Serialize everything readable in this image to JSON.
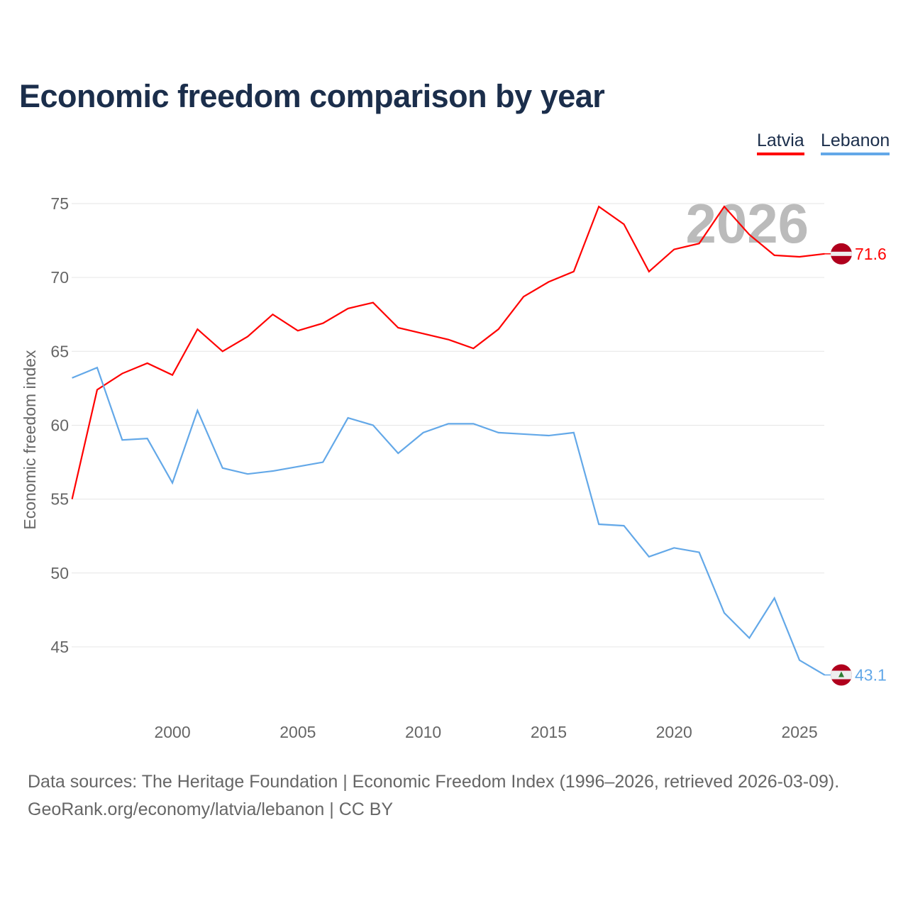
{
  "chart_data": {
    "type": "line",
    "title": "Economic freedom comparison by year",
    "xlabel": "",
    "ylabel": "Economic freedom index",
    "xlim": [
      1996,
      2026
    ],
    "ylim": [
      41,
      77
    ],
    "yticks": [
      45,
      50,
      55,
      60,
      65,
      70,
      75
    ],
    "xticks": [
      2000,
      2005,
      2010,
      2015,
      2020,
      2025
    ],
    "grid": "horizontal",
    "legend_position": "top-right",
    "watermark_year": "2026",
    "x": [
      1996,
      1997,
      1998,
      1999,
      2000,
      2001,
      2002,
      2003,
      2004,
      2005,
      2006,
      2007,
      2008,
      2009,
      2010,
      2011,
      2012,
      2013,
      2014,
      2015,
      2016,
      2017,
      2018,
      2019,
      2020,
      2021,
      2022,
      2023,
      2024,
      2025,
      2026
    ],
    "series": [
      {
        "name": "Latvia",
        "color": "#ff0000",
        "end_label": "71.6",
        "values": [
          55.0,
          62.4,
          63.5,
          64.2,
          63.4,
          66.5,
          65.0,
          66.0,
          67.5,
          66.4,
          66.9,
          67.9,
          68.3,
          66.6,
          66.2,
          65.8,
          65.2,
          66.5,
          68.7,
          69.7,
          70.4,
          74.8,
          73.6,
          70.4,
          71.9,
          72.3,
          74.8,
          72.9,
          71.5,
          71.4,
          71.6
        ]
      },
      {
        "name": "Lebanon",
        "color": "#63a8e8",
        "end_label": "43.1",
        "values": [
          63.2,
          63.9,
          59.0,
          59.1,
          56.1,
          61.0,
          57.1,
          56.7,
          56.9,
          57.2,
          57.5,
          60.5,
          60.0,
          58.1,
          59.5,
          60.1,
          60.1,
          59.5,
          59.4,
          59.3,
          59.5,
          53.3,
          53.2,
          51.1,
          51.7,
          51.4,
          47.3,
          45.6,
          48.3,
          44.1,
          43.1
        ]
      }
    ]
  },
  "footer": {
    "line1": "Data sources: The Heritage Foundation | Economic Freedom Index (1996–2026, retrieved 2026-03-09).",
    "line2": "GeoRank.org/economy/latvia/lebanon | CC BY"
  }
}
